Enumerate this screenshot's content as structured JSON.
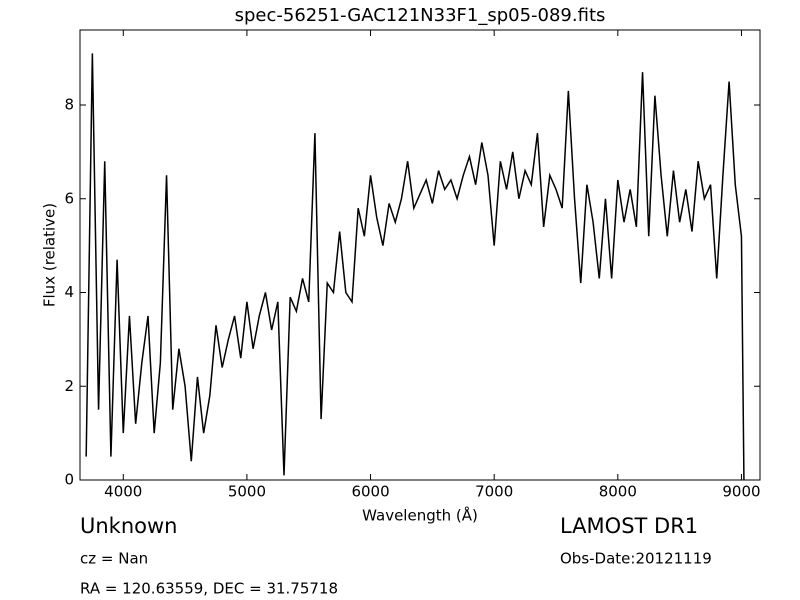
{
  "chart_data": {
    "type": "line",
    "title": "spec-56251-GAC121N33F1_sp05-089.fits",
    "xlabel": "Wavelength (Å)",
    "ylabel": "Flux (relative)",
    "color": "#000000",
    "x": [
      3700,
      3750,
      3800,
      3850,
      3900,
      3950,
      4000,
      4050,
      4100,
      4150,
      4200,
      4250,
      4300,
      4350,
      4400,
      4450,
      4500,
      4550,
      4600,
      4650,
      4700,
      4750,
      4800,
      4850,
      4900,
      4950,
      5000,
      5050,
      5100,
      5150,
      5200,
      5250,
      5300,
      5350,
      5400,
      5450,
      5500,
      5550,
      5600,
      5650,
      5700,
      5750,
      5800,
      5850,
      5900,
      5950,
      6000,
      6050,
      6100,
      6150,
      6200,
      6250,
      6300,
      6350,
      6400,
      6450,
      6500,
      6550,
      6600,
      6650,
      6700,
      6750,
      6800,
      6850,
      6900,
      6950,
      7000,
      7050,
      7100,
      7150,
      7200,
      7250,
      7300,
      7350,
      7400,
      7450,
      7500,
      7550,
      7600,
      7650,
      7700,
      7750,
      7800,
      7850,
      7900,
      7950,
      8000,
      8050,
      8100,
      8150,
      8200,
      8250,
      8300,
      8350,
      8400,
      8450,
      8500,
      8550,
      8600,
      8650,
      8700,
      8750,
      8800,
      8850,
      8900,
      8950,
      9000,
      9020
    ],
    "values": [
      0.5,
      9.1,
      1.5,
      6.8,
      0.5,
      4.7,
      1.0,
      3.5,
      1.2,
      2.5,
      3.5,
      1.0,
      2.5,
      6.5,
      1.5,
      2.8,
      2.0,
      0.4,
      2.2,
      1.0,
      1.8,
      3.3,
      2.4,
      3.0,
      3.5,
      2.6,
      3.8,
      2.8,
      3.5,
      4.0,
      3.2,
      3.8,
      0.1,
      3.9,
      3.6,
      4.3,
      3.8,
      7.4,
      1.3,
      4.2,
      4.0,
      5.3,
      4.0,
      3.8,
      5.8,
      5.2,
      6.5,
      5.6,
      5.0,
      5.9,
      5.5,
      6.0,
      6.8,
      5.8,
      6.1,
      6.4,
      5.9,
      6.6,
      6.2,
      6.4,
      6.0,
      6.5,
      6.9,
      6.3,
      7.2,
      6.5,
      5.0,
      6.8,
      6.2,
      7.0,
      6.0,
      6.6,
      6.3,
      7.4,
      5.4,
      6.5,
      6.2,
      5.8,
      8.3,
      6.0,
      4.2,
      6.3,
      5.5,
      4.3,
      6.0,
      4.3,
      6.4,
      5.5,
      6.2,
      5.4,
      8.7,
      5.2,
      8.2,
      6.5,
      5.2,
      6.6,
      5.5,
      6.2,
      5.3,
      6.8,
      6.0,
      6.3,
      4.3,
      6.5,
      8.5,
      6.3,
      5.2,
      0
    ],
    "xlim": [
      3650,
      9150
    ],
    "xticks": [
      4000,
      5000,
      6000,
      7000,
      8000,
      9000
    ],
    "ylim": [
      0,
      9.6
    ],
    "yticks": [
      0,
      2,
      4,
      6,
      8
    ],
    "annotations": [
      "Unknown",
      "cz = Nan",
      "RA = 120.63559, DEC = 31.75718",
      "LAMOST DR1",
      "Obs-Date:20121119"
    ]
  }
}
